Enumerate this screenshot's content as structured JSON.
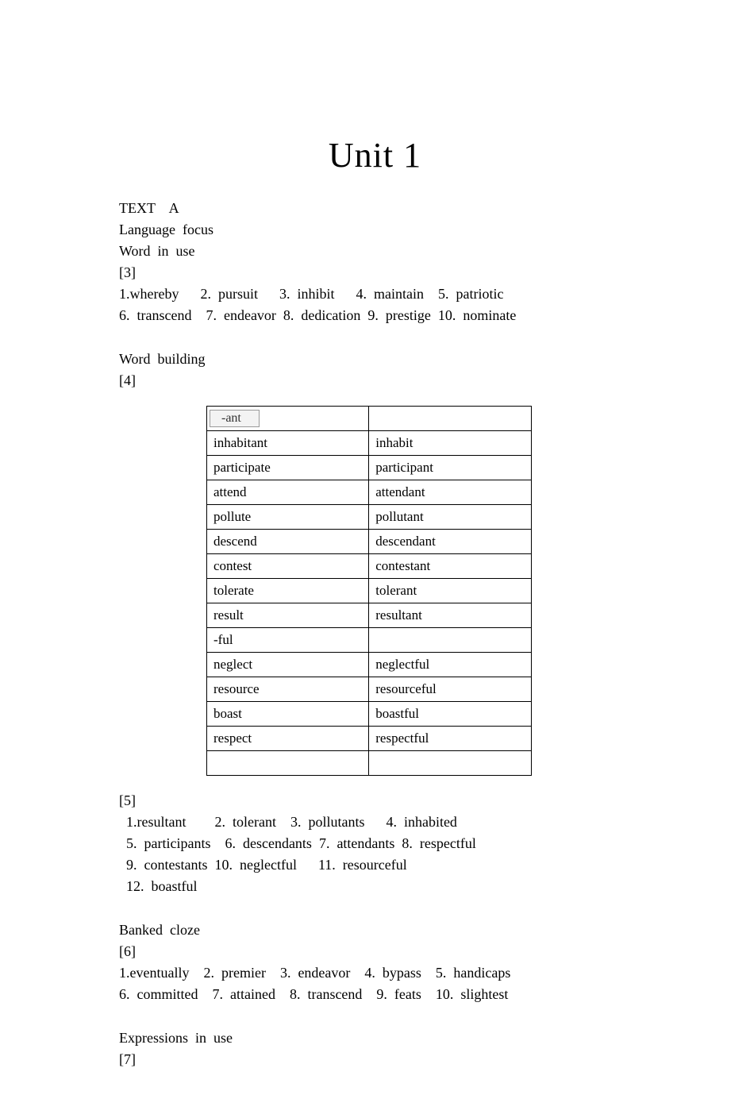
{
  "title": "Unit  1",
  "lines_top": [
    "TEXT    A",
    "Language  focus",
    "Word  in  use",
    "[3]",
    "1.whereby      2.  pursuit      3.  inhibit      4.  maintain    5.  patriotic",
    "6.  transcend    7.  endeavor  8.  dedication  9.  prestige  10.  nominate"
  ],
  "word_building_heading": "Word  building",
  "word_building_ref": "[4]",
  "table": {
    "header_box": "-ant",
    "rows": [
      [
        "inhabitant",
        "inhabit"
      ],
      [
        "participate",
        "participant"
      ],
      [
        "attend",
        "attendant"
      ],
      [
        "pollute",
        "pollutant"
      ],
      [
        "descend",
        "descendant"
      ],
      [
        "contest",
        "contestant"
      ],
      [
        "tolerate",
        "tolerant"
      ],
      [
        "result",
        "resultant"
      ],
      [
        "-ful",
        ""
      ],
      [
        "neglect",
        "neglectful"
      ],
      [
        "resource",
        "resourceful"
      ],
      [
        "boast",
        "boastful"
      ],
      [
        "respect",
        " respectful"
      ],
      [
        "",
        ""
      ]
    ]
  },
  "lines_5": [
    "[5]",
    "  1.resultant        2.  tolerant    3.  pollutants      4.  inhabited",
    "  5.  participants    6.  descendants  7.  attendants  8.  respectful",
    "  9.  contestants  10.  neglectful      11.  resourceful",
    "  12.  boastful"
  ],
  "banked_heading": "Banked  cloze",
  "banked_ref": "[6]",
  "banked_lines": [
    "1.eventually    2.  premier    3.  endeavor    4.  bypass    5.  handicaps",
    "6.  committed    7.  attained    8.  transcend    9.  feats    10.  slightest"
  ],
  "expr_heading": "Expressions  in  use",
  "expr_ref": "[7]"
}
